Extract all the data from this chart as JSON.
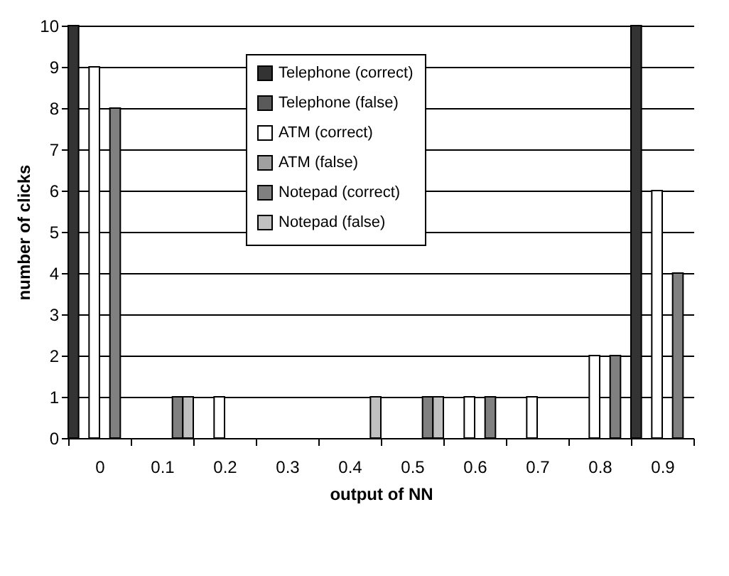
{
  "chart_data": {
    "type": "bar",
    "xlabel": "output of NN",
    "ylabel": "number of clicks",
    "categories": [
      "0",
      "0.1",
      "0.2",
      "0.3",
      "0.4",
      "0.5",
      "0.6",
      "0.7",
      "0.8",
      "0.9"
    ],
    "series": [
      {
        "name": "Telephone (correct)",
        "color": "#333333",
        "values": [
          10,
          0,
          0,
          0,
          0,
          0,
          0,
          0,
          0,
          10
        ]
      },
      {
        "name": "Telephone (false)",
        "color": "#5a5a5a",
        "values": [
          0,
          0,
          0,
          0,
          0,
          0,
          0,
          0,
          0,
          0
        ]
      },
      {
        "name": "ATM (correct)",
        "color": "#ffffff",
        "values": [
          9,
          0,
          1,
          0,
          0,
          0,
          1,
          1,
          2,
          6
        ]
      },
      {
        "name": "ATM (false)",
        "color": "#a0a0a0",
        "values": [
          0,
          0,
          0,
          0,
          0,
          0,
          0,
          0,
          0,
          0
        ]
      },
      {
        "name": "Notepad (correct)",
        "color": "#808080",
        "values": [
          8,
          1,
          0,
          0,
          0,
          1,
          1,
          0,
          2,
          4
        ]
      },
      {
        "name": "Notepad (false)",
        "color": "#c0c0c0",
        "values": [
          0,
          1,
          0,
          0,
          1,
          1,
          0,
          0,
          0,
          0
        ]
      }
    ],
    "ylim": [
      0,
      10
    ],
    "yticks": [
      0,
      1,
      2,
      3,
      4,
      5,
      6,
      7,
      8,
      9,
      10
    ],
    "grid": "y",
    "legend": "top"
  }
}
